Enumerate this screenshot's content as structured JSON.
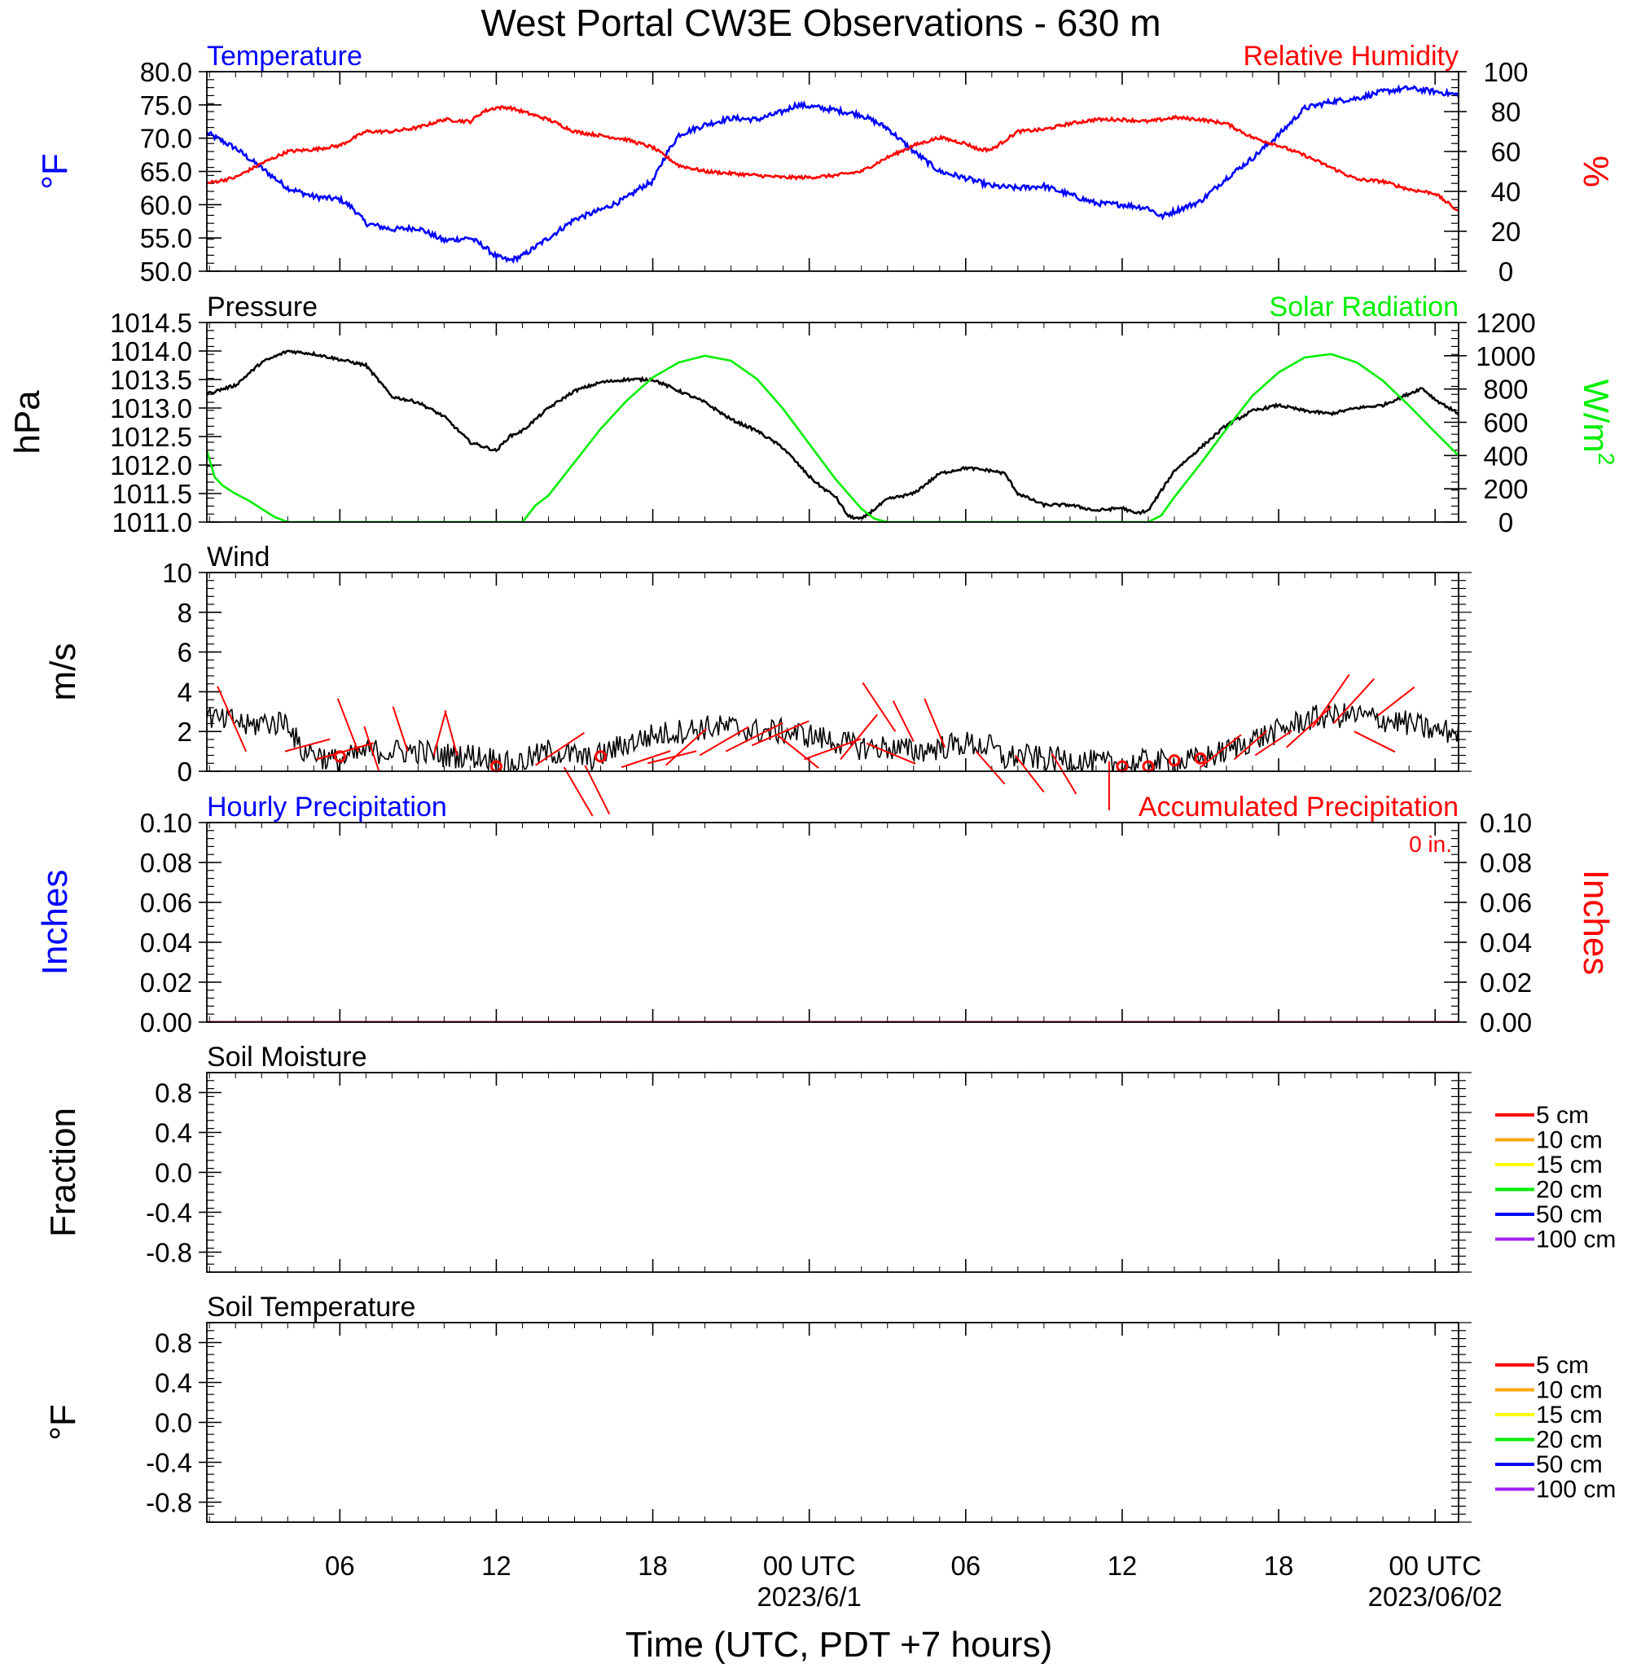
{
  "title": "West Portal CW3E Observations - 630 m",
  "x_axis": {
    "label": "Time (UTC, PDT +7 hours)",
    "ticks": [
      {
        "hour": 6,
        "label": "06",
        "sub": ""
      },
      {
        "hour": 12,
        "label": "12",
        "sub": ""
      },
      {
        "hour": 18,
        "label": "18",
        "sub": ""
      },
      {
        "hour": 24,
        "label": "00 UTC",
        "sub": "2023/6/1"
      },
      {
        "hour": 30,
        "label": "06",
        "sub": ""
      },
      {
        "hour": 36,
        "label": "12",
        "sub": ""
      },
      {
        "hour": 42,
        "label": "18",
        "sub": ""
      },
      {
        "hour": 48,
        "label": "00 UTC",
        "sub": "2023/06/02"
      }
    ],
    "range_hours": [
      0.9,
      48.9
    ]
  },
  "colors": {
    "temperature": "#0000ff",
    "humidity": "#ff0000",
    "pressure": "#000000",
    "solar": "#00ee00",
    "wind": "#000000",
    "wind_barb": "#ff0000",
    "hourly_precip": "#0000ff",
    "accum_precip": "#ff0000"
  },
  "chart_data": [
    {
      "type": "line",
      "panel": "temperature-humidity",
      "left_title": "Temperature",
      "right_title": "Relative Humidity",
      "ylabel_left": "°F",
      "ylabel_right": "%",
      "ylim_left": [
        50,
        80
      ],
      "ylim_right": [
        0,
        100
      ],
      "yticks_left": [
        "50.0",
        "55.0",
        "60.0",
        "65.0",
        "70.0",
        "75.0",
        "80.0"
      ],
      "yticks_right": [
        "0",
        "20",
        "40",
        "60",
        "80",
        "100"
      ],
      "series": [
        {
          "name": "Temperature",
          "axis": "left",
          "x": [
            0.9,
            2,
            3,
            4,
            5,
            6,
            6.5,
            7,
            8,
            9,
            10,
            11,
            11.5,
            12,
            12.5,
            13,
            14,
            15,
            16,
            17,
            17.5,
            18,
            18.5,
            19,
            20,
            21,
            22,
            23,
            23.5,
            24,
            25,
            26,
            27,
            28,
            29,
            30,
            31,
            32,
            33,
            34,
            35,
            36,
            37,
            37.5,
            38,
            39,
            40,
            41,
            42,
            43,
            44,
            45,
            46,
            47,
            48,
            48.9
          ],
          "y": [
            70.8,
            68.5,
            65.5,
            62.5,
            61.2,
            60.8,
            59.5,
            57.2,
            56.3,
            56.5,
            54.6,
            55.0,
            53.8,
            52.2,
            51.6,
            52.3,
            55.0,
            57.8,
            59.2,
            61.0,
            62.5,
            63.5,
            67.5,
            70.5,
            72.0,
            73.0,
            72.8,
            74.0,
            75.0,
            74.8,
            74.2,
            73.5,
            71.5,
            68.0,
            65.0,
            64.0,
            62.8,
            62.5,
            62.8,
            61.5,
            60.2,
            60.0,
            59.5,
            58.2,
            59.0,
            60.5,
            64.0,
            67.0,
            70.5,
            74.5,
            75.5,
            76.0,
            77.0,
            77.5,
            77.0,
            76.5
          ]
        },
        {
          "name": "Relative Humidity",
          "axis": "right",
          "x": [
            0.9,
            2,
            3,
            4,
            5,
            6,
            7,
            8,
            9,
            10,
            11,
            11.5,
            12,
            12.5,
            13,
            14,
            15,
            16,
            17,
            18,
            19,
            20,
            21,
            22,
            23,
            24,
            25,
            26,
            27,
            28,
            29,
            30,
            30.5,
            31,
            32,
            33,
            34,
            35,
            36,
            37,
            38,
            39,
            40,
            41,
            42,
            43,
            44,
            45,
            46,
            47,
            48,
            48.9
          ],
          "y": [
            44,
            47,
            54,
            60,
            61,
            63,
            70,
            70,
            72,
            76,
            75,
            80,
            82,
            82,
            80,
            76,
            70,
            68,
            66,
            62,
            53,
            50,
            49,
            48,
            47,
            47,
            48,
            50,
            57,
            63,
            67,
            64,
            61,
            61,
            70,
            71,
            74,
            76,
            76,
            75,
            77,
            76,
            74,
            67,
            63,
            58,
            52,
            46,
            45,
            41,
            39,
            30
          ]
        }
      ]
    },
    {
      "type": "line",
      "panel": "pressure-solar",
      "left_title": "Pressure",
      "right_title": "Solar Radiation",
      "ylabel_left": "hPa",
      "ylabel_right_base": "W/m",
      "ylabel_right_sup": "2",
      "ylim_left": [
        1011.0,
        1014.5
      ],
      "ylim_right": [
        0,
        1200
      ],
      "yticks_left": [
        "1011.0",
        "1011.5",
        "1012.0",
        "1012.5",
        "1013.0",
        "1013.5",
        "1014.0",
        "1014.5"
      ],
      "yticks_right": [
        "0",
        "200",
        "400",
        "600",
        "800",
        "1000",
        "1200"
      ],
      "series": [
        {
          "name": "Pressure",
          "axis": "left",
          "x": [
            0.9,
            2,
            3,
            4,
            5,
            6,
            7,
            8,
            9,
            10,
            11,
            12,
            12.5,
            13,
            14,
            15,
            16,
            17,
            18,
            19,
            20,
            21,
            22,
            23,
            24,
            24.5,
            25,
            25.5,
            26,
            27,
            28,
            29,
            30,
            31,
            31.5,
            32,
            33,
            34,
            35,
            36,
            36.5,
            37,
            38,
            39,
            40,
            41,
            42,
            43,
            44,
            45,
            46,
            47,
            47.5,
            48,
            48.9
          ],
          "y": [
            1013.25,
            1013.4,
            1013.8,
            1014.0,
            1013.95,
            1013.85,
            1013.75,
            1013.2,
            1013.1,
            1012.85,
            1012.4,
            1012.25,
            1012.5,
            1012.6,
            1013.0,
            1013.3,
            1013.45,
            1013.5,
            1013.5,
            1013.3,
            1013.1,
            1012.8,
            1012.6,
            1012.3,
            1011.8,
            1011.6,
            1011.45,
            1011.1,
            1011.05,
            1011.4,
            1011.5,
            1011.85,
            1011.95,
            1011.9,
            1011.85,
            1011.5,
            1011.3,
            1011.3,
            1011.2,
            1011.25,
            1011.15,
            1011.2,
            1011.9,
            1012.3,
            1012.7,
            1012.95,
            1013.05,
            1012.95,
            1012.9,
            1013.0,
            1013.05,
            1013.25,
            1013.35,
            1013.15,
            1012.9
          ]
        },
        {
          "name": "Solar Radiation",
          "axis": "right",
          "x": [
            0.9,
            1.2,
            1.5,
            2,
            2.5,
            3,
            3.5,
            4,
            13,
            13.5,
            14,
            15,
            16,
            17,
            18,
            19,
            20,
            21,
            22,
            23,
            24,
            25,
            26,
            26.5,
            27,
            37,
            37.5,
            38,
            39,
            40,
            41,
            42,
            43,
            44,
            45,
            46,
            47,
            48,
            48.9
          ],
          "y": [
            430,
            270,
            220,
            170,
            130,
            80,
            30,
            0,
            0,
            100,
            160,
            360,
            560,
            730,
            870,
            960,
            1000,
            970,
            860,
            680,
            470,
            260,
            80,
            20,
            0,
            0,
            40,
            150,
            350,
            560,
            760,
            900,
            990,
            1010,
            960,
            850,
            700,
            540,
            400
          ]
        }
      ]
    },
    {
      "type": "line",
      "panel": "wind",
      "left_title": "Wind",
      "ylabel_left": "m/s",
      "ylim_left": [
        0,
        10
      ],
      "yticks_left": [
        "0",
        "2",
        "4",
        "6",
        "8",
        "10"
      ],
      "series": [
        {
          "name": "Wind",
          "axis": "left",
          "x": [
            0.9,
            1.5,
            2,
            2.5,
            3,
            3.5,
            4,
            4.5,
            5,
            5.5,
            6,
            7,
            8,
            9,
            10,
            11,
            12,
            12.5,
            13,
            14,
            15,
            15.5,
            16,
            17,
            18,
            19,
            20,
            21,
            22,
            23,
            24,
            25,
            26,
            27,
            28,
            29,
            30,
            31,
            31.5,
            32,
            33,
            34,
            35,
            36,
            37,
            38,
            39,
            40,
            41,
            42,
            43,
            44,
            45,
            46,
            47,
            48,
            48.9
          ],
          "y": [
            2.8,
            2.5,
            2.6,
            2.2,
            2.5,
            2.4,
            2.6,
            1.0,
            1.0,
            0.6,
            0.5,
            1.0,
            1.0,
            1.0,
            0.8,
            0.8,
            0.6,
            0.3,
            0.5,
            1.0,
            0.8,
            0.6,
            0.8,
            1.4,
            1.8,
            2.0,
            2.2,
            2.2,
            2.0,
            2.0,
            1.8,
            1.5,
            1.2,
            1.2,
            1.0,
            1.2,
            1.4,
            1.2,
            0.6,
            0.8,
            0.6,
            0.6,
            0.4,
            0.3,
            0.5,
            0.4,
            0.6,
            1.0,
            1.6,
            2.0,
            2.6,
            2.8,
            2.8,
            2.6,
            2.4,
            2.0,
            2.0
          ]
        }
      ],
      "barbs": [
        {
          "x": 2.4,
          "y": 1.0,
          "dx": -35,
          "dy": -80
        },
        {
          "x": 3.9,
          "y": 1.0,
          "dx": 55,
          "dy": -15
        },
        {
          "x": 5.1,
          "y": 0.6,
          "dx": 70,
          "dy": -20
        },
        {
          "x": 6.0,
          "y": 0.5,
          "calm": true
        },
        {
          "x": 6.7,
          "y": 1.0,
          "dx": -25,
          "dy": -65
        },
        {
          "x": 7.5,
          "y": 0.0,
          "dx": -18,
          "dy": -55
        },
        {
          "x": 8.6,
          "y": 1.0,
          "dx": -18,
          "dy": -55
        },
        {
          "x": 9.6,
          "y": 0.8,
          "dx": 15,
          "dy": -55
        },
        {
          "x": 10.5,
          "y": 0.8,
          "dx": -15,
          "dy": -55
        },
        {
          "x": 12.0,
          "y": 0.0,
          "calm": true
        },
        {
          "x": 13.5,
          "y": 0.3,
          "dx": 60,
          "dy": -40
        },
        {
          "x": 14.6,
          "y": 0.2,
          "dx": 35,
          "dy": 60
        },
        {
          "x": 15.4,
          "y": 0.3,
          "dx": 30,
          "dy": 60
        },
        {
          "x": 16.0,
          "y": 0.5,
          "calm": true
        },
        {
          "x": 16.8,
          "y": 0.2,
          "dx": 60,
          "dy": -20
        },
        {
          "x": 17.8,
          "y": 0.4,
          "dx": 60,
          "dy": -15
        },
        {
          "x": 18.5,
          "y": 0.3,
          "dx": 50,
          "dy": -45
        },
        {
          "x": 19.8,
          "y": 0.8,
          "dx": 60,
          "dy": -35
        },
        {
          "x": 20.8,
          "y": 1.0,
          "dx": 70,
          "dy": -35
        },
        {
          "x": 21.8,
          "y": 1.3,
          "dx": 70,
          "dy": -30
        },
        {
          "x": 22.8,
          "y": 1.8,
          "dx": 50,
          "dy": 40
        },
        {
          "x": 23.8,
          "y": 0.6,
          "dx": 70,
          "dy": -25
        },
        {
          "x": 25.2,
          "y": 0.6,
          "dx": 45,
          "dy": -55
        },
        {
          "x": 26.2,
          "y": 1.4,
          "dx": 60,
          "dy": 25
        },
        {
          "x": 27.3,
          "y": 2.0,
          "dx": -40,
          "dy": -60
        },
        {
          "x": 28.0,
          "y": 1.5,
          "dx": -25,
          "dy": -50
        },
        {
          "x": 29.2,
          "y": 1.2,
          "dx": -25,
          "dy": -60
        },
        {
          "x": 30.4,
          "y": 1.0,
          "dx": 35,
          "dy": 40
        },
        {
          "x": 31.9,
          "y": 0.8,
          "dx": 35,
          "dy": 45
        },
        {
          "x": 33.3,
          "y": 0.9,
          "dx": 30,
          "dy": 50
        },
        {
          "x": 35.5,
          "y": 0.5,
          "dx": 0,
          "dy": 60
        },
        {
          "x": 36.0,
          "y": 0.0,
          "calm": true
        },
        {
          "x": 37.0,
          "y": 0.0,
          "calm": true
        },
        {
          "x": 38.0,
          "y": 0.3,
          "calm": true
        },
        {
          "x": 39.0,
          "y": 0.4,
          "calm": true
        },
        {
          "x": 39.0,
          "y": 0.2,
          "dx": 50,
          "dy": -40
        },
        {
          "x": 40.3,
          "y": 0.6,
          "dx": 40,
          "dy": -35
        },
        {
          "x": 41.1,
          "y": 0.8,
          "dx": 45,
          "dy": -30
        },
        {
          "x": 42.3,
          "y": 1.2,
          "dx": 55,
          "dy": -50
        },
        {
          "x": 43.3,
          "y": 2.2,
          "dx": 45,
          "dy": -65
        },
        {
          "x": 44.1,
          "y": 2.4,
          "dx": 50,
          "dy": -55
        },
        {
          "x": 44.9,
          "y": 2.0,
          "dx": 50,
          "dy": 25
        },
        {
          "x": 45.8,
          "y": 2.8,
          "dx": 45,
          "dy": -35
        }
      ]
    },
    {
      "type": "line",
      "panel": "precipitation",
      "left_title": "Hourly Precipitation",
      "right_title": "Accumulated Precipitation",
      "annotation": "0 in.",
      "ylabel_left": "Inches",
      "ylabel_right": "Inches",
      "ylim_left": [
        0,
        0.1
      ],
      "ylim_right": [
        0,
        0.1
      ],
      "yticks_left": [
        "0.00",
        "0.02",
        "0.04",
        "0.06",
        "0.08",
        "0.10"
      ],
      "yticks_right": [
        "0.00",
        "0.02",
        "0.04",
        "0.06",
        "0.08",
        "0.10"
      ],
      "series": [
        {
          "name": "Hourly Precipitation",
          "axis": "left",
          "x": [
            0.9,
            48.9
          ],
          "y": [
            0,
            0
          ]
        },
        {
          "name": "Accumulated Precipitation",
          "axis": "right",
          "x": [
            0.9,
            48.9
          ],
          "y": [
            0,
            0
          ]
        }
      ]
    },
    {
      "type": "line",
      "panel": "soil-moisture",
      "left_title": "Soil Moisture",
      "ylabel_left": "Fraction",
      "ylim_left": [
        -1.0,
        1.0
      ],
      "yticks_left": [
        "-0.8",
        "-0.4",
        "0.0",
        "0.4",
        "0.8"
      ],
      "ytick_values": [
        -0.8,
        -0.4,
        0.0,
        0.4,
        0.8
      ],
      "legend": [
        {
          "label": "5 cm",
          "color": "#ff0000"
        },
        {
          "label": "10 cm",
          "color": "#ffa500"
        },
        {
          "label": "15 cm",
          "color": "#ffff00"
        },
        {
          "label": "20 cm",
          "color": "#00ee00"
        },
        {
          "label": "50 cm",
          "color": "#0000ff"
        },
        {
          "label": "100 cm",
          "color": "#a020f0"
        }
      ]
    },
    {
      "type": "line",
      "panel": "soil-temperature",
      "left_title": "Soil Temperature",
      "ylabel_left": "°F",
      "ylim_left": [
        -1.0,
        1.0
      ],
      "yticks_left": [
        "-0.8",
        "-0.4",
        "0.0",
        "0.4",
        "0.8"
      ],
      "ytick_values": [
        -0.8,
        -0.4,
        0.0,
        0.4,
        0.8
      ],
      "legend": [
        {
          "label": "5 cm",
          "color": "#ff0000"
        },
        {
          "label": "10 cm",
          "color": "#ffa500"
        },
        {
          "label": "15 cm",
          "color": "#ffff00"
        },
        {
          "label": "20 cm",
          "color": "#00ee00"
        },
        {
          "label": "50 cm",
          "color": "#0000ff"
        },
        {
          "label": "100 cm",
          "color": "#a020f0"
        }
      ]
    }
  ]
}
